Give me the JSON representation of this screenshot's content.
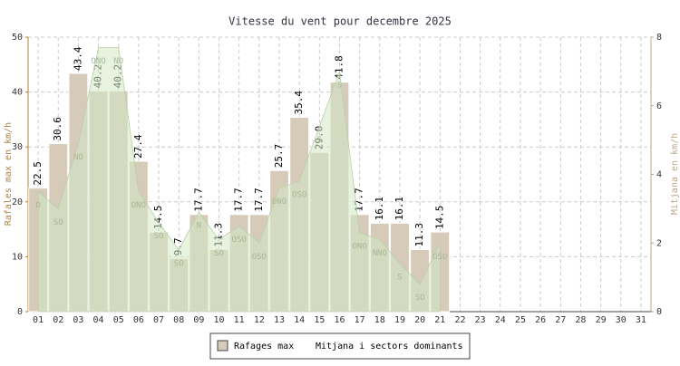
{
  "chart_data": {
    "type": "bar",
    "title": "Vitesse du vent pour decembre 2025",
    "y_label": "Rafales max en km/h",
    "y2_label": "Mitjana en km/h",
    "categories": [
      "01",
      "02",
      "03",
      "04",
      "05",
      "06",
      "07",
      "08",
      "09",
      "10",
      "11",
      "12",
      "13",
      "14",
      "15",
      "16",
      "17",
      "18",
      "19",
      "20",
      "21",
      "22",
      "23",
      "24",
      "25",
      "26",
      "27",
      "28",
      "29",
      "30",
      "31"
    ],
    "series": [
      {
        "name": "Rafages max",
        "type": "bar",
        "color": "#d6cbb8",
        "values": [
          22.5,
          30.6,
          43.4,
          40.2,
          40.2,
          27.4,
          14.5,
          9.7,
          17.7,
          11.3,
          17.7,
          17.7,
          25.7,
          35.4,
          29.0,
          41.8,
          17.7,
          16.1,
          16.1,
          11.3,
          14.5,
          null,
          null,
          null,
          null,
          null,
          null,
          null,
          null,
          null,
          null
        ],
        "value_labels": [
          "22.5",
          "30.6",
          "43.4",
          "40.2",
          "40.2",
          "27.4",
          "14.5",
          "9.7",
          "17.7",
          "11.3",
          "17.7",
          "17.7",
          "25.7",
          "35.4",
          "29.0",
          "41.8",
          "17.7",
          "16.1",
          "16.1",
          "11.3",
          "14.5",
          null,
          null,
          null,
          null,
          null,
          null,
          null,
          null,
          null,
          null
        ]
      },
      {
        "name": "Mitjana i sectors dominants",
        "type": "area",
        "axis": "y2",
        "color": "#d4e8c4",
        "values": [
          3.5,
          3.0,
          4.9,
          7.7,
          7.7,
          3.5,
          2.6,
          1.8,
          2.9,
          2.1,
          2.5,
          2.0,
          3.6,
          3.8,
          5.4,
          7.0,
          2.3,
          2.1,
          1.4,
          0.8,
          2.0,
          null,
          null,
          null,
          null,
          null,
          null,
          null,
          null,
          null,
          null
        ],
        "sectors": [
          "O",
          "SO",
          "NO",
          "ONO",
          "NO",
          "ONO",
          "SO",
          "SO",
          "N",
          "SO",
          "OSO",
          "OSO",
          "ONO",
          "OSO",
          "S",
          "S",
          "ONO",
          "NNO",
          "S",
          "SO",
          "OSO",
          null,
          null,
          null,
          null,
          null,
          null,
          null,
          null,
          null,
          null
        ]
      }
    ],
    "ylim": [
      0,
      50
    ],
    "yticks": [
      0,
      10,
      20,
      30,
      40,
      50
    ],
    "y2lim": [
      0,
      8
    ],
    "y2ticks": [
      0,
      2,
      4,
      6,
      8
    ],
    "grid": true
  }
}
